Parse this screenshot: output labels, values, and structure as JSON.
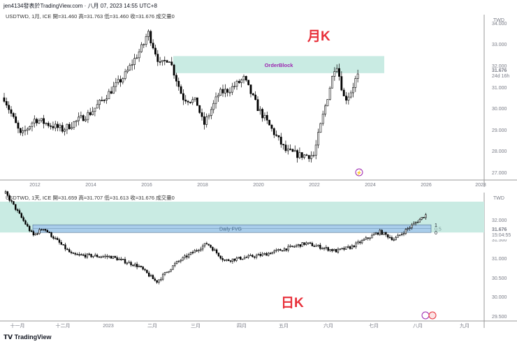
{
  "header": {
    "credit": "jen4134發表於TradingView.com · 八月 07, 2023 14:55 UTC+8"
  },
  "footer": {
    "logo": "TradingView"
  },
  "colors": {
    "zone": "#c9ebe3",
    "fvg": "#a9cdea",
    "bull": "#ffffff",
    "bear": "#000000",
    "label": "#e8303a",
    "orderblock_text": "#9c27b0"
  },
  "chart_data": [
    {
      "type": "candlestick",
      "symbol_legend": "USDTWD, 1月, ICE  開=31.460  高=31.763  低=31.460  收=31.676  成交量0",
      "currency": "TWD",
      "annotation": "月K",
      "zone_label": "OrderBlock",
      "zone": [
        31.65,
        32.45
      ],
      "last_price": "31.676",
      "countdown": "24d 16h",
      "ylim": [
        26.7,
        34.2
      ],
      "yticks": [
        "34.000",
        "33.000",
        "32.000",
        "31.000",
        "30.000",
        "29.000",
        "28.000",
        "27.000"
      ],
      "xticks": [
        "2012",
        "2014",
        "2016",
        "2018",
        "2020",
        "2022",
        "2024",
        "2026",
        "2028"
      ],
      "close_path": [
        [
          2010.9,
          30.5
        ],
        [
          2011.5,
          28.7
        ],
        [
          2012,
          29.5
        ],
        [
          2013,
          29.0
        ],
        [
          2014,
          29.8
        ],
        [
          2014.5,
          30.5
        ],
        [
          2015.2,
          31.5
        ],
        [
          2015.9,
          33.0
        ],
        [
          2016.05,
          33.6
        ],
        [
          2016.5,
          32.0
        ],
        [
          2016.8,
          32.4
        ],
        [
          2017.3,
          30.5
        ],
        [
          2017.8,
          30.3
        ],
        [
          2018.05,
          29.2
        ],
        [
          2018.6,
          30.7
        ],
        [
          2019.0,
          30.9
        ],
        [
          2019.5,
          31.4
        ],
        [
          2020.0,
          30.0
        ],
        [
          2020.5,
          29.0
        ],
        [
          2021.0,
          28.0
        ],
        [
          2021.5,
          27.8
        ],
        [
          2022.0,
          27.8
        ],
        [
          2022.3,
          29.5
        ],
        [
          2022.8,
          32.2
        ],
        [
          2023.1,
          30.4
        ],
        [
          2023.3,
          30.7
        ],
        [
          2023.6,
          31.68
        ]
      ]
    },
    {
      "type": "candlestick",
      "symbol_legend": "USDTWD, 1天, ICE  開=31.659  高=31.707  低=31.613  收=31.676  成交量0",
      "currency": "TWD",
      "annotation": "日K",
      "fvg_label": "Daily FVG",
      "fvg_levels": [
        "1",
        "0.5",
        "0"
      ],
      "fvg": [
        31.67,
        31.87
      ],
      "zone": [
        31.67,
        32.5
      ],
      "last_price": "31.676",
      "countdown": "15:04:55",
      "ylim": [
        29.45,
        32.6
      ],
      "yticks": [
        "32.000",
        "31.500",
        "31.000",
        "30.500",
        "30.000",
        "29.500"
      ],
      "xticks": [
        "十一月",
        "十二月",
        "2023",
        "二月",
        "三月",
        "四月",
        "五月",
        "六月",
        "七月",
        "八月",
        "九月"
      ],
      "close_path": [
        [
          "2022-10-20",
          32.2
        ],
        [
          "2022-11-08",
          31.1
        ],
        [
          "2022-11-15",
          31.3
        ],
        [
          "2022-12-05",
          30.6
        ],
        [
          "2023-01-01",
          30.55
        ],
        [
          "2023-01-20",
          30.3
        ],
        [
          "2023-02-01",
          29.9
        ],
        [
          "2023-02-15",
          30.4
        ],
        [
          "2023-03-08",
          30.9
        ],
        [
          "2023-03-20",
          30.45
        ],
        [
          "2023-04-15",
          30.6
        ],
        [
          "2023-05-05",
          30.8
        ],
        [
          "2023-05-15",
          30.9
        ],
        [
          "2023-06-05",
          30.7
        ],
        [
          "2023-06-15",
          30.8
        ],
        [
          "2023-07-05",
          31.2
        ],
        [
          "2023-07-15",
          31.0
        ],
        [
          "2023-07-25",
          31.3
        ],
        [
          "2023-08-07",
          31.68
        ]
      ]
    }
  ]
}
